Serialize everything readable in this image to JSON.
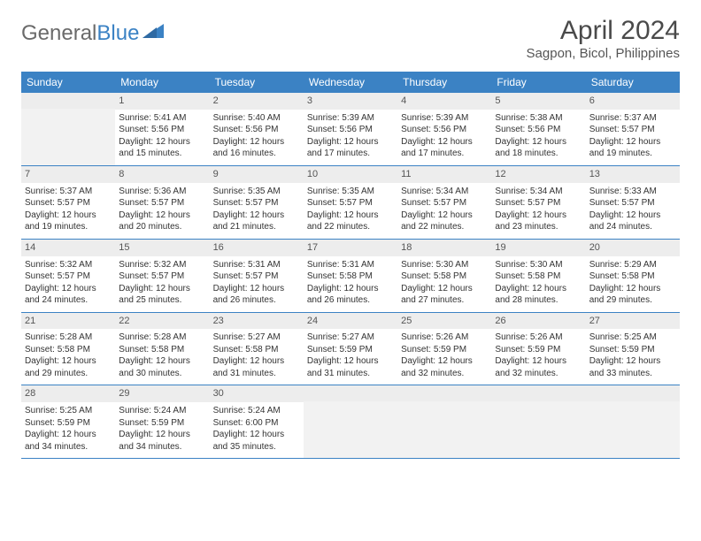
{
  "brand": {
    "general": "General",
    "blue": "Blue"
  },
  "title": "April 2024",
  "location": "Sagpon, Bicol, Philippines",
  "dayHeaders": [
    "Sunday",
    "Monday",
    "Tuesday",
    "Wednesday",
    "Thursday",
    "Friday",
    "Saturday"
  ],
  "colors": {
    "header_bg": "#3b82c4",
    "header_text": "#ffffff",
    "daynum_bg": "#ededed",
    "rule": "#3b82c4",
    "body_text": "#333333"
  },
  "weeks": [
    [
      {
        "empty": true
      },
      {
        "n": "1",
        "sr": "Sunrise: 5:41 AM",
        "ss": "Sunset: 5:56 PM",
        "d1": "Daylight: 12 hours",
        "d2": "and 15 minutes."
      },
      {
        "n": "2",
        "sr": "Sunrise: 5:40 AM",
        "ss": "Sunset: 5:56 PM",
        "d1": "Daylight: 12 hours",
        "d2": "and 16 minutes."
      },
      {
        "n": "3",
        "sr": "Sunrise: 5:39 AM",
        "ss": "Sunset: 5:56 PM",
        "d1": "Daylight: 12 hours",
        "d2": "and 17 minutes."
      },
      {
        "n": "4",
        "sr": "Sunrise: 5:39 AM",
        "ss": "Sunset: 5:56 PM",
        "d1": "Daylight: 12 hours",
        "d2": "and 17 minutes."
      },
      {
        "n": "5",
        "sr": "Sunrise: 5:38 AM",
        "ss": "Sunset: 5:56 PM",
        "d1": "Daylight: 12 hours",
        "d2": "and 18 minutes."
      },
      {
        "n": "6",
        "sr": "Sunrise: 5:37 AM",
        "ss": "Sunset: 5:57 PM",
        "d1": "Daylight: 12 hours",
        "d2": "and 19 minutes."
      }
    ],
    [
      {
        "n": "7",
        "sr": "Sunrise: 5:37 AM",
        "ss": "Sunset: 5:57 PM",
        "d1": "Daylight: 12 hours",
        "d2": "and 19 minutes."
      },
      {
        "n": "8",
        "sr": "Sunrise: 5:36 AM",
        "ss": "Sunset: 5:57 PM",
        "d1": "Daylight: 12 hours",
        "d2": "and 20 minutes."
      },
      {
        "n": "9",
        "sr": "Sunrise: 5:35 AM",
        "ss": "Sunset: 5:57 PM",
        "d1": "Daylight: 12 hours",
        "d2": "and 21 minutes."
      },
      {
        "n": "10",
        "sr": "Sunrise: 5:35 AM",
        "ss": "Sunset: 5:57 PM",
        "d1": "Daylight: 12 hours",
        "d2": "and 22 minutes."
      },
      {
        "n": "11",
        "sr": "Sunrise: 5:34 AM",
        "ss": "Sunset: 5:57 PM",
        "d1": "Daylight: 12 hours",
        "d2": "and 22 minutes."
      },
      {
        "n": "12",
        "sr": "Sunrise: 5:34 AM",
        "ss": "Sunset: 5:57 PM",
        "d1": "Daylight: 12 hours",
        "d2": "and 23 minutes."
      },
      {
        "n": "13",
        "sr": "Sunrise: 5:33 AM",
        "ss": "Sunset: 5:57 PM",
        "d1": "Daylight: 12 hours",
        "d2": "and 24 minutes."
      }
    ],
    [
      {
        "n": "14",
        "sr": "Sunrise: 5:32 AM",
        "ss": "Sunset: 5:57 PM",
        "d1": "Daylight: 12 hours",
        "d2": "and 24 minutes."
      },
      {
        "n": "15",
        "sr": "Sunrise: 5:32 AM",
        "ss": "Sunset: 5:57 PM",
        "d1": "Daylight: 12 hours",
        "d2": "and 25 minutes."
      },
      {
        "n": "16",
        "sr": "Sunrise: 5:31 AM",
        "ss": "Sunset: 5:57 PM",
        "d1": "Daylight: 12 hours",
        "d2": "and 26 minutes."
      },
      {
        "n": "17",
        "sr": "Sunrise: 5:31 AM",
        "ss": "Sunset: 5:58 PM",
        "d1": "Daylight: 12 hours",
        "d2": "and 26 minutes."
      },
      {
        "n": "18",
        "sr": "Sunrise: 5:30 AM",
        "ss": "Sunset: 5:58 PM",
        "d1": "Daylight: 12 hours",
        "d2": "and 27 minutes."
      },
      {
        "n": "19",
        "sr": "Sunrise: 5:30 AM",
        "ss": "Sunset: 5:58 PM",
        "d1": "Daylight: 12 hours",
        "d2": "and 28 minutes."
      },
      {
        "n": "20",
        "sr": "Sunrise: 5:29 AM",
        "ss": "Sunset: 5:58 PM",
        "d1": "Daylight: 12 hours",
        "d2": "and 29 minutes."
      }
    ],
    [
      {
        "n": "21",
        "sr": "Sunrise: 5:28 AM",
        "ss": "Sunset: 5:58 PM",
        "d1": "Daylight: 12 hours",
        "d2": "and 29 minutes."
      },
      {
        "n": "22",
        "sr": "Sunrise: 5:28 AM",
        "ss": "Sunset: 5:58 PM",
        "d1": "Daylight: 12 hours",
        "d2": "and 30 minutes."
      },
      {
        "n": "23",
        "sr": "Sunrise: 5:27 AM",
        "ss": "Sunset: 5:58 PM",
        "d1": "Daylight: 12 hours",
        "d2": "and 31 minutes."
      },
      {
        "n": "24",
        "sr": "Sunrise: 5:27 AM",
        "ss": "Sunset: 5:59 PM",
        "d1": "Daylight: 12 hours",
        "d2": "and 31 minutes."
      },
      {
        "n": "25",
        "sr": "Sunrise: 5:26 AM",
        "ss": "Sunset: 5:59 PM",
        "d1": "Daylight: 12 hours",
        "d2": "and 32 minutes."
      },
      {
        "n": "26",
        "sr": "Sunrise: 5:26 AM",
        "ss": "Sunset: 5:59 PM",
        "d1": "Daylight: 12 hours",
        "d2": "and 32 minutes."
      },
      {
        "n": "27",
        "sr": "Sunrise: 5:25 AM",
        "ss": "Sunset: 5:59 PM",
        "d1": "Daylight: 12 hours",
        "d2": "and 33 minutes."
      }
    ],
    [
      {
        "n": "28",
        "sr": "Sunrise: 5:25 AM",
        "ss": "Sunset: 5:59 PM",
        "d1": "Daylight: 12 hours",
        "d2": "and 34 minutes."
      },
      {
        "n": "29",
        "sr": "Sunrise: 5:24 AM",
        "ss": "Sunset: 5:59 PM",
        "d1": "Daylight: 12 hours",
        "d2": "and 34 minutes."
      },
      {
        "n": "30",
        "sr": "Sunrise: 5:24 AM",
        "ss": "Sunset: 6:00 PM",
        "d1": "Daylight: 12 hours",
        "d2": "and 35 minutes."
      },
      {
        "empty": true
      },
      {
        "empty": true
      },
      {
        "empty": true
      },
      {
        "empty": true
      }
    ]
  ]
}
